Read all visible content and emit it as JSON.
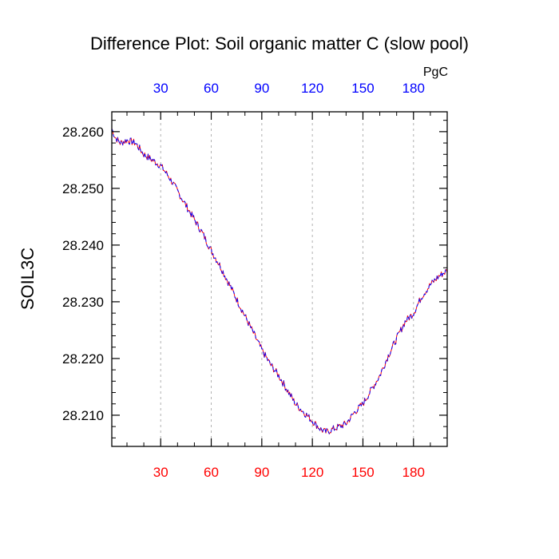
{
  "chart_data": {
    "type": "line",
    "title": "Difference Plot: Soil organic matter C (slow pool)",
    "ylabel": "SOIL3C",
    "top_axis_unit": "PgC",
    "xlim": [
      1,
      200
    ],
    "ylim": [
      28.2045,
      28.2635
    ],
    "x_ticks": [
      30,
      60,
      90,
      120,
      150,
      180
    ],
    "x_tick_labels": [
      "30",
      "60",
      "90",
      "120",
      "150",
      "180"
    ],
    "y_ticks": [
      28.21,
      28.22,
      28.23,
      28.24,
      28.25,
      28.26
    ],
    "y_tick_labels": [
      "28.210",
      "28.220",
      "28.230",
      "28.240",
      "28.250",
      "28.260"
    ],
    "grid": "vertical-dashed",
    "colors": {
      "bottom_ticks": "#ff0000",
      "top_ticks": "#0000ff",
      "series_a": "#0000ff",
      "series_b": "#ff0000",
      "axis": "#000000",
      "grid": "#b0b0b0"
    },
    "series": [
      {
        "name": "difference",
        "keypoints_x": [
          1,
          3,
          6,
          10,
          15,
          20,
          25,
          30,
          35,
          40,
          45,
          50,
          55,
          60,
          65,
          70,
          75,
          80,
          85,
          90,
          95,
          100,
          105,
          110,
          115,
          120,
          125,
          128,
          132,
          136,
          140,
          145,
          150,
          155,
          160,
          165,
          170,
          175,
          180,
          185,
          190,
          195,
          200
        ],
        "keypoints_y": [
          28.2605,
          28.259,
          28.258,
          28.2585,
          28.258,
          28.256,
          28.255,
          28.254,
          28.252,
          28.2495,
          28.247,
          28.2445,
          28.242,
          28.239,
          28.2365,
          28.2335,
          28.2305,
          28.2275,
          28.2245,
          28.2215,
          28.219,
          28.217,
          28.2145,
          28.212,
          28.2105,
          28.209,
          28.2075,
          28.207,
          28.2075,
          28.208,
          28.2085,
          28.2105,
          28.212,
          28.2145,
          28.217,
          28.2205,
          28.2235,
          28.2265,
          28.228,
          28.231,
          28.233,
          28.2345,
          28.2355
        ],
        "noise_amplitude": 0.0008
      }
    ]
  }
}
